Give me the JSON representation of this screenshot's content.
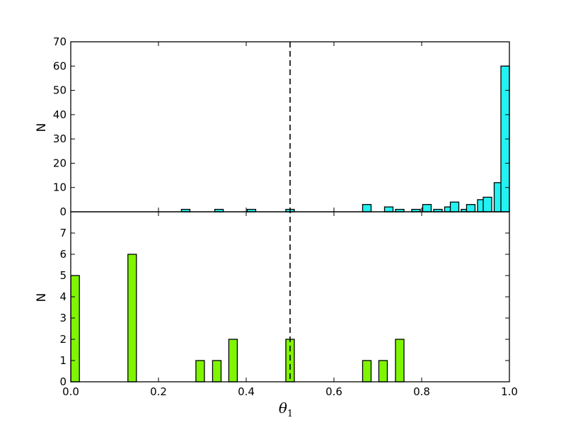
{
  "chart_data": [
    {
      "type": "bar",
      "panel": "top",
      "ylabel": "N",
      "ylim": [
        0,
        70
      ],
      "yticks": [
        "0",
        "10",
        "20",
        "30",
        "40",
        "50",
        "60",
        "70"
      ],
      "xlim": [
        0.0,
        1.0
      ],
      "bar_color": "#22f2f2",
      "bins": [
        {
          "x": 0.262,
          "count": 1
        },
        {
          "x": 0.338,
          "count": 1
        },
        {
          "x": 0.412,
          "count": 1
        },
        {
          "x": 0.5,
          "count": 1
        },
        {
          "x": 0.675,
          "count": 3
        },
        {
          "x": 0.725,
          "count": 2
        },
        {
          "x": 0.75,
          "count": 1
        },
        {
          "x": 0.787,
          "count": 1
        },
        {
          "x": 0.812,
          "count": 3
        },
        {
          "x": 0.837,
          "count": 1
        },
        {
          "x": 0.862,
          "count": 2
        },
        {
          "x": 0.875,
          "count": 4
        },
        {
          "x": 0.9,
          "count": 1
        },
        {
          "x": 0.912,
          "count": 3
        },
        {
          "x": 0.937,
          "count": 5
        },
        {
          "x": 0.95,
          "count": 6
        },
        {
          "x": 0.975,
          "count": 12
        },
        {
          "x": 0.993,
          "count": 60
        }
      ]
    },
    {
      "type": "bar",
      "panel": "bottom",
      "ylabel": "N",
      "ylim": [
        0,
        8
      ],
      "yticks": [
        "0",
        "1",
        "2",
        "3",
        "4",
        "5",
        "6",
        "7"
      ],
      "xlim": [
        0.0,
        1.0
      ],
      "xlabel": "θ",
      "xlabel_subscript": "1",
      "xticks": [
        "0.0",
        "0.2",
        "0.4",
        "0.6",
        "0.8",
        "1.0"
      ],
      "bar_color": "#7ff500",
      "bins": [
        {
          "x": 0.01,
          "count": 5
        },
        {
          "x": 0.14,
          "count": 6
        },
        {
          "x": 0.295,
          "count": 1
        },
        {
          "x": 0.333,
          "count": 1
        },
        {
          "x": 0.37,
          "count": 2
        },
        {
          "x": 0.5,
          "count": 2
        },
        {
          "x": 0.675,
          "count": 1
        },
        {
          "x": 0.712,
          "count": 1
        },
        {
          "x": 0.75,
          "count": 2
        }
      ]
    }
  ],
  "reference_line": {
    "x": 0.5,
    "style": "dashed"
  }
}
